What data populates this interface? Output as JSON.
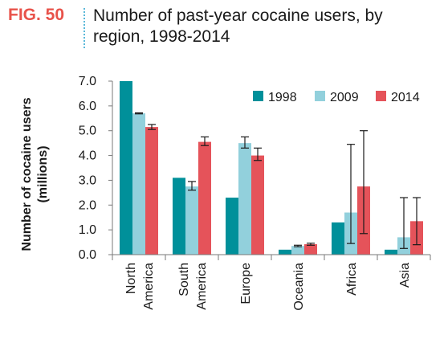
{
  "figure": {
    "label": "FIG. 50",
    "title": "Number of past-year cocaine users, by region, 1998-2014"
  },
  "chart_data": {
    "type": "bar",
    "title": "Number of past-year cocaine users, by region, 1998-2014",
    "ylabel": "Number of cocaine users (millions)",
    "xlabel": "",
    "ylim": [
      0,
      7
    ],
    "yticks": [
      "0.0",
      "1.0",
      "2.0",
      "3.0",
      "4.0",
      "5.0",
      "6.0",
      "7.0"
    ],
    "categories": [
      [
        "North",
        "America"
      ],
      [
        "South",
        "America"
      ],
      [
        "Europe"
      ],
      [
        "Oceania"
      ],
      [
        "Africa"
      ],
      [
        "Asia"
      ]
    ],
    "legend_position": "top-right",
    "grid": false,
    "series": [
      {
        "name": "1998",
        "color": "#00909a",
        "values": [
          7.0,
          3.1,
          2.3,
          0.2,
          1.3,
          0.2
        ],
        "error_low": [
          null,
          null,
          null,
          null,
          null,
          null
        ],
        "error_high": [
          null,
          null,
          null,
          null,
          null,
          null
        ]
      },
      {
        "name": "2009",
        "color": "#92d0dc",
        "values": [
          5.7,
          2.75,
          4.5,
          0.35,
          1.7,
          0.7
        ],
        "error_low": [
          5.68,
          2.6,
          4.3,
          0.32,
          0.45,
          0.25
        ],
        "error_high": [
          5.72,
          2.95,
          4.75,
          0.38,
          4.45,
          2.3
        ]
      },
      {
        "name": "2014",
        "color": "#e5535a",
        "values": [
          5.15,
          4.55,
          4.0,
          0.42,
          2.75,
          1.35
        ],
        "error_low": [
          5.05,
          4.4,
          3.8,
          0.38,
          0.85,
          0.4
        ],
        "error_high": [
          5.25,
          4.75,
          4.3,
          0.46,
          5.0,
          2.3
        ]
      }
    ]
  }
}
